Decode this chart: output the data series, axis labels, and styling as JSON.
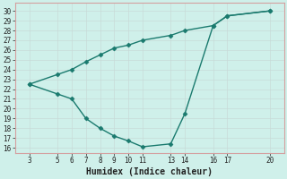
{
  "x_upper": [
    3,
    5,
    6,
    7,
    8,
    9,
    10,
    11,
    13,
    14,
    16,
    17,
    20
  ],
  "y_upper": [
    22.5,
    23.5,
    24.0,
    24.8,
    25.5,
    26.2,
    26.5,
    27.0,
    27.5,
    28.0,
    28.5,
    29.5,
    30.0
  ],
  "x_lower": [
    3,
    5,
    6,
    7,
    8,
    9,
    10,
    11,
    13,
    14,
    16,
    17,
    20
  ],
  "y_lower": [
    22.5,
    21.5,
    21.0,
    19.0,
    18.0,
    17.2,
    16.7,
    16.1,
    16.4,
    19.5,
    28.5,
    29.5,
    30.0
  ],
  "line_color": "#1a7a6e",
  "marker": "D",
  "marker_size": 2.5,
  "background_color": "#cff0ea",
  "grid_major_color": "#c8dbd8",
  "grid_minor_color": "#dce8e6",
  "spine_color": "#d4a0a0",
  "xlabel": "Humidex (Indice chaleur)",
  "xlabel_fontsize": 7,
  "yticks": [
    16,
    17,
    18,
    19,
    20,
    21,
    22,
    23,
    24,
    25,
    26,
    27,
    28,
    29,
    30
  ],
  "xticks": [
    3,
    5,
    6,
    7,
    8,
    9,
    10,
    11,
    13,
    14,
    16,
    17,
    20
  ],
  "ylim": [
    15.5,
    30.8
  ],
  "xlim": [
    2.0,
    21.0
  ],
  "line_width": 1.0
}
